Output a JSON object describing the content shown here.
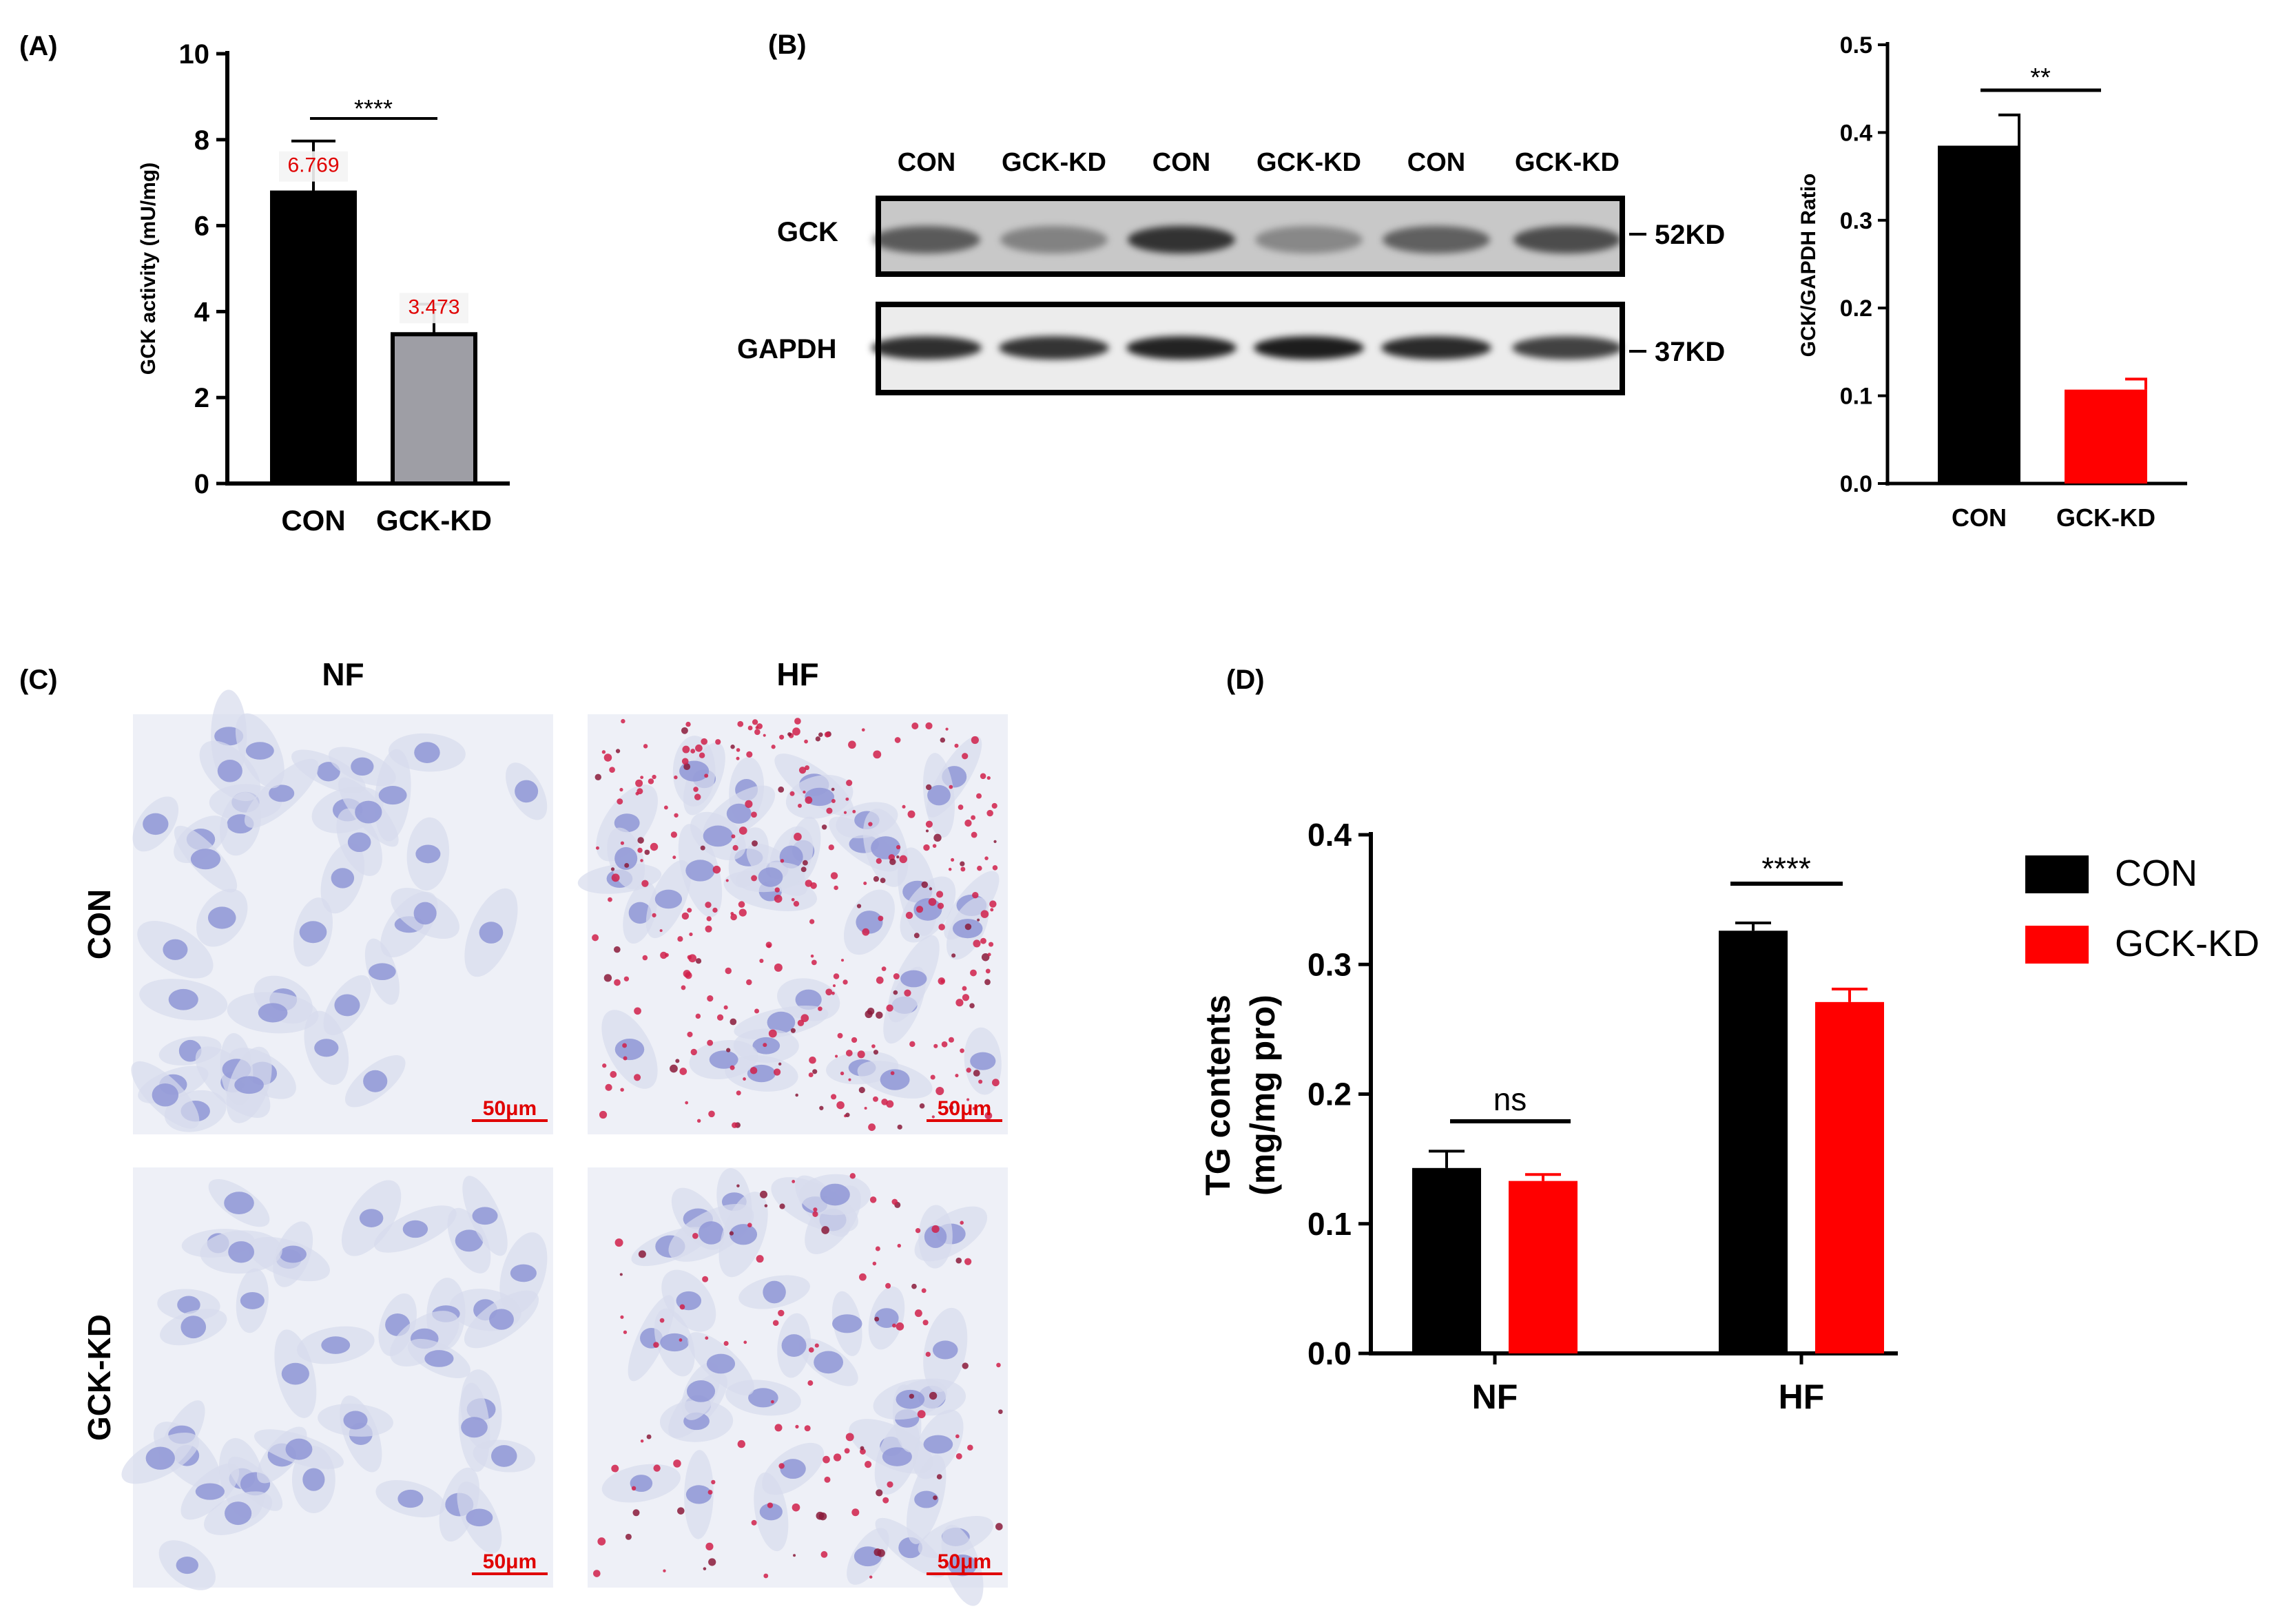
{
  "panels": {
    "a": {
      "letter": "(A)"
    },
    "b": {
      "letter": "(B)"
    },
    "c": {
      "letter": "(C)"
    },
    "d": {
      "letter": "(D)"
    }
  },
  "chart_data": [
    {
      "id": "A",
      "type": "bar",
      "ylabel": "GCK activity (mU/mg)",
      "ylim": [
        0,
        10
      ],
      "yticks": [
        "0",
        "2",
        "4",
        "6",
        "8",
        "10"
      ],
      "categories": [
        "CON",
        "GCK-KD"
      ],
      "values": [
        6.769,
        3.473
      ],
      "errors": [
        1.2,
        0.7
      ],
      "data_labels": [
        "6.769",
        "3.473"
      ],
      "colors": [
        "#000000",
        "#9e9ea5"
      ],
      "significance": "****"
    },
    {
      "id": "B-quant",
      "type": "bar",
      "ylabel": "GCK/GAPDH Ratio",
      "ylim": [
        0,
        0.5
      ],
      "yticks": [
        "0.0",
        "0.1",
        "0.2",
        "0.3",
        "0.4",
        "0.5"
      ],
      "categories": [
        "CON",
        "GCK-KD"
      ],
      "values": [
        0.385,
        0.107
      ],
      "errors": [
        0.035,
        0.012
      ],
      "colors": [
        "#000000",
        "#ff0000"
      ],
      "significance": "**"
    },
    {
      "id": "D",
      "type": "bar",
      "ylabel_lines": [
        "TG contents",
        "(mg/mg pro)"
      ],
      "ylim": [
        0,
        0.4
      ],
      "yticks": [
        "0.0",
        "0.1",
        "0.2",
        "0.3",
        "0.4"
      ],
      "categories": [
        "NF",
        "HF"
      ],
      "series": [
        {
          "name": "CON",
          "values": [
            0.143,
            0.326
          ],
          "errors": [
            0.013,
            0.006
          ],
          "color": "#000000"
        },
        {
          "name": "GCK-KD",
          "values": [
            0.133,
            0.271
          ],
          "errors": [
            0.005,
            0.01
          ],
          "color": "#ff0000"
        }
      ],
      "significance": [
        "ns",
        "****"
      ],
      "legend": "right"
    }
  ],
  "western_blot": {
    "lanes": [
      "CON",
      "GCK-KD",
      "CON",
      "GCK-KD",
      "CON",
      "GCK-KD"
    ],
    "rows": [
      {
        "label": "GCK",
        "marker": "52KD"
      },
      {
        "label": "GAPDH",
        "marker": "37KD"
      }
    ]
  },
  "staining": {
    "columns": [
      "NF",
      "HF"
    ],
    "rows": [
      "CON",
      "GCK-KD"
    ],
    "scale_bar": "50μm",
    "scale_color": "#e00000"
  }
}
